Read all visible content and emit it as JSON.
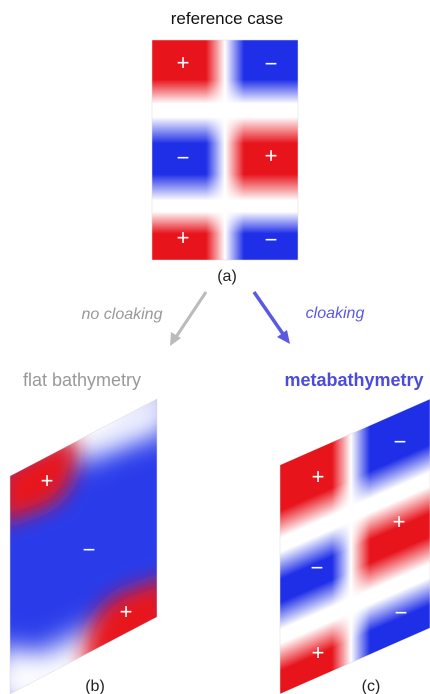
{
  "titles": {
    "reference": "reference case",
    "flat": "flat bathymetry",
    "meta": "metabathymetry"
  },
  "arrows": {
    "no_cloaking": "no cloaking",
    "cloaking": "cloaking"
  },
  "panel_labels": {
    "a": "(a)",
    "b": "(b)",
    "c": "(c)"
  },
  "signs": {
    "plus": "+",
    "minus": "−"
  },
  "colors": {
    "red": "#e8141c",
    "blue": "#1f2fe8",
    "gray_title": "#999999",
    "blue_title": "#4b4bdc",
    "gray_arrow": "#bbbbbb",
    "blue_arrow": "#5a5ae0"
  }
}
